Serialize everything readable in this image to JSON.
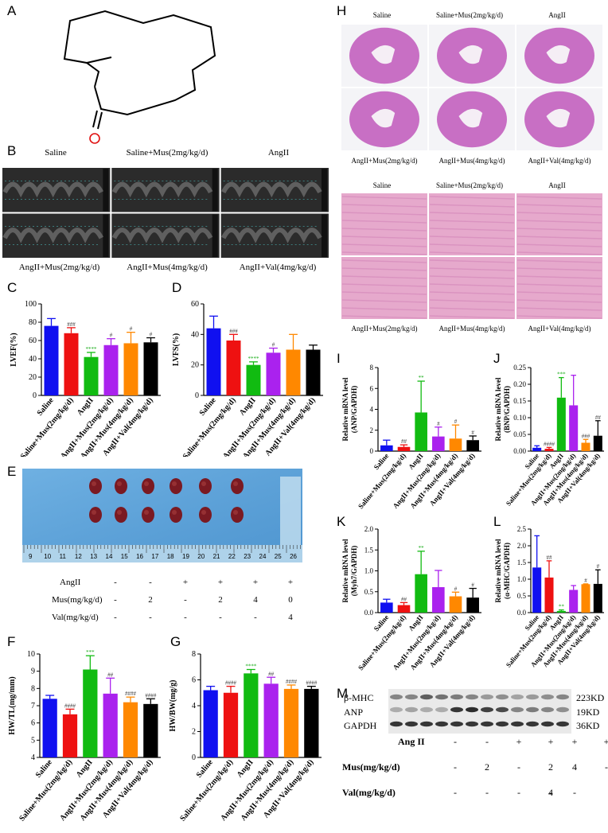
{
  "panel_labels": {
    "A": "A",
    "B": "B",
    "C": "C",
    "D": "D",
    "E": "E",
    "F": "F",
    "G": "G",
    "H": "H",
    "I": "I",
    "J": "J",
    "K": "K",
    "L": "L",
    "M": "M"
  },
  "colors": [
    "#1010f0",
    "#ee1111",
    "#11bb11",
    "#aa22ee",
    "#ff8800",
    "#000000"
  ],
  "echo": {
    "captions": [
      "Saline",
      "Saline+Mus(2mg/kg/d)",
      "AngII",
      "AngII+Mus(2mg/kg/d)",
      "AngII+Mus(4mg/kg/d)",
      "AngII+Val(4mg/kg/d)"
    ]
  },
  "histology": {
    "captions": [
      "Saline",
      "Saline+Mus(2mg/kg/d)",
      "AngII",
      "AngII+Mus(2mg/kg/d)",
      "AngII+Mus(4mg/kg/d)",
      "AngII+Val(4mg/kg/d)"
    ]
  },
  "photo_ruler": [
    "9",
    "10",
    "11",
    "12",
    "13",
    "14",
    "15",
    "16",
    "17",
    "18",
    "19",
    "20",
    "21",
    "22",
    "23",
    "24",
    "25",
    "26"
  ],
  "treatment_table": {
    "rows": [
      {
        "label": "AngII",
        "cells": [
          "-",
          "-",
          "+",
          "+",
          "+",
          "+"
        ]
      },
      {
        "label": "Mus(mg/kg/d)",
        "cells": [
          "-",
          "2",
          "-",
          "2",
          "4",
          "0"
        ]
      },
      {
        "label": "Val(mg/kg/d)",
        "cells": [
          "-",
          "-",
          "-",
          "-",
          "-",
          "4"
        ]
      }
    ]
  },
  "western": {
    "bands": [
      "β-MHC",
      "ANP",
      "GAPDH"
    ],
    "sizes": [
      "223KD",
      "19KD",
      "36KD"
    ],
    "rows": [
      {
        "label": "Ang II",
        "cells": [
          "-",
          "-",
          "+",
          "+",
          "+",
          "+"
        ]
      },
      {
        "label": "Mus(mg/kg/d)",
        "cells": [
          "-",
          "2",
          "-",
          "2",
          "4",
          "-"
        ]
      },
      {
        "label": "Val(mg/kg/d)",
        "cells": [
          "-",
          "-",
          "-",
          "-",
          "-",
          "4"
        ]
      }
    ]
  },
  "chart_data": [
    {
      "id": "C",
      "type": "bar",
      "ylabel": "LVEF(%)",
      "ylim": [
        0,
        100
      ],
      "yticks": [
        0,
        20,
        40,
        60,
        80,
        100
      ],
      "categories": [
        "Saline",
        "Saline+Mus(2mg/kg/d)",
        "AngII",
        "AngII+Mus(2mg/kg/d)",
        "AngII+Mus(4mg/kg/d)",
        "AngII+Val(4mg/kg/d)"
      ],
      "values": [
        76,
        68,
        42,
        55,
        57,
        58
      ],
      "errors": [
        8,
        6,
        5,
        7,
        12,
        5
      ],
      "annotations": [
        "",
        "###",
        "****",
        "#",
        "#",
        "#"
      ]
    },
    {
      "id": "D",
      "type": "bar",
      "ylabel": "LVFS(%)",
      "ylim": [
        0,
        60
      ],
      "yticks": [
        0,
        20,
        40,
        60
      ],
      "categories": [
        "Saline",
        "Saline+Mus(2mg/kg/d)",
        "AngII",
        "AngII+Mus(2mg/kg/d)",
        "AngII+Mus(4mg/kg/d)",
        "AngII+Val(4mg/kg/d)"
      ],
      "values": [
        44,
        36,
        20,
        28,
        30,
        30
      ],
      "errors": [
        8,
        4,
        2,
        3,
        10,
        3
      ],
      "annotations": [
        "",
        "###",
        "****",
        "#",
        "",
        ""
      ]
    },
    {
      "id": "F",
      "type": "bar",
      "ylabel": "HW/TL(mg/mm)",
      "ylim": [
        4,
        10
      ],
      "yticks": [
        4,
        5,
        6,
        7,
        8,
        9,
        10
      ],
      "categories": [
        "Saline",
        "Saline+Mus(2mg/kg/d)",
        "AngII",
        "AngII+Mus(2mg/kg/d)",
        "AngII+Mus(4mg/kg/d)",
        "AngII+Val(4mg/kg/d)"
      ],
      "values": [
        7.4,
        6.5,
        9.1,
        7.7,
        7.2,
        7.1
      ],
      "errors": [
        0.2,
        0.3,
        0.8,
        0.9,
        0.3,
        0.3
      ],
      "annotations": [
        "",
        "####",
        "***",
        "##",
        "####",
        "####"
      ]
    },
    {
      "id": "G",
      "type": "bar",
      "ylabel": "HW/BW(mg/g)",
      "ylim": [
        0,
        8
      ],
      "yticks": [
        0,
        2,
        4,
        6,
        8
      ],
      "categories": [
        "Saline",
        "Saline+Mus(2mg/kg/d)",
        "AngII",
        "AngII+Mus(2mg/kg/d)",
        "AngII+Mus(4mg/kg/d)",
        "AngII+Val(4mg/kg/d)"
      ],
      "values": [
        5.2,
        5.0,
        6.5,
        5.7,
        5.3,
        5.3
      ],
      "errors": [
        0.3,
        0.5,
        0.3,
        0.5,
        0.3,
        0.2
      ],
      "annotations": [
        "",
        "####",
        "****",
        "##",
        "####",
        "####"
      ]
    },
    {
      "id": "I",
      "type": "bar",
      "ylabel": "Relative mRNA level (ANP/GAPDH)",
      "ylim": [
        0,
        8
      ],
      "yticks": [
        0,
        2,
        4,
        6,
        8
      ],
      "categories": [
        "Saline",
        "Saline+Mus(2mg/kg/d)",
        "AngII",
        "AngII+Mus(2mg/kg/d)",
        "AngII+Mus(4mg/kg/d)",
        "AngII+Val(4mg/kg/d)"
      ],
      "values": [
        0.55,
        0.4,
        3.7,
        1.4,
        1.2,
        1.05
      ],
      "errors": [
        0.5,
        0.2,
        3.0,
        0.9,
        1.3,
        0.4
      ],
      "annotations": [
        "",
        "##",
        "**",
        "#",
        "#",
        "#"
      ]
    },
    {
      "id": "J",
      "type": "bar",
      "ylabel": "Relative mRNA level (BNP/GAPDH)",
      "ylim": [
        0,
        0.25
      ],
      "yticks": [
        0.0,
        0.05,
        0.1,
        0.15,
        0.2,
        0.25
      ],
      "categories": [
        "Saline",
        "Saline+Mus(2mg/kg/d)",
        "AngII",
        "AngII+Mus(2mg/kg/d)",
        "AngII+Mus(4mg/kg/d)",
        "AngII+Val(4mg/kg/d)"
      ],
      "values": [
        0.01,
        0.007,
        0.16,
        0.137,
        0.025,
        0.046
      ],
      "errors": [
        0.006,
        0.004,
        0.06,
        0.09,
        0.01,
        0.045
      ],
      "annotations": [
        "",
        "####",
        "***",
        "",
        "###",
        "##"
      ]
    },
    {
      "id": "K",
      "type": "bar",
      "ylabel": "Relative mRNA level (Myh7/GAPDH)",
      "ylim": [
        0,
        2.0
      ],
      "yticks": [
        0.0,
        0.5,
        1.0,
        1.5,
        2.0
      ],
      "categories": [
        "Saline",
        "Saline+Mus(2mg/kg/d)",
        "AngII",
        "AngII+Mus(2mg/kg/d)",
        "AngII+Mus(4mg/kg/d)",
        "AngII+Val(4mg/kg/d)"
      ],
      "values": [
        0.24,
        0.18,
        0.92,
        0.61,
        0.39,
        0.36
      ],
      "errors": [
        0.08,
        0.06,
        0.55,
        0.4,
        0.1,
        0.22
      ],
      "annotations": [
        "",
        "##",
        "**",
        "",
        "#",
        "#"
      ]
    },
    {
      "id": "L",
      "type": "bar",
      "ylabel": "Relative mRNA level (α-MHC/GAPDH)",
      "ylim": [
        0,
        2.5
      ],
      "yticks": [
        0.0,
        0.5,
        1.0,
        1.5,
        2.0,
        2.5
      ],
      "categories": [
        "Saline",
        "Saline+Mus(2mg/kg/d)",
        "AngII",
        "AngII+Mus(2mg/kg/d)",
        "AngII+Mus(4mg/kg/d)",
        "AngII+Val(4mg/kg/d)"
      ],
      "values": [
        1.35,
        1.05,
        0.05,
        0.68,
        0.85,
        0.86
      ],
      "errors": [
        0.95,
        0.5,
        0.03,
        0.13,
        0.01,
        0.42
      ],
      "annotations": [
        "",
        "##",
        "**",
        "",
        "#",
        "#"
      ]
    }
  ]
}
